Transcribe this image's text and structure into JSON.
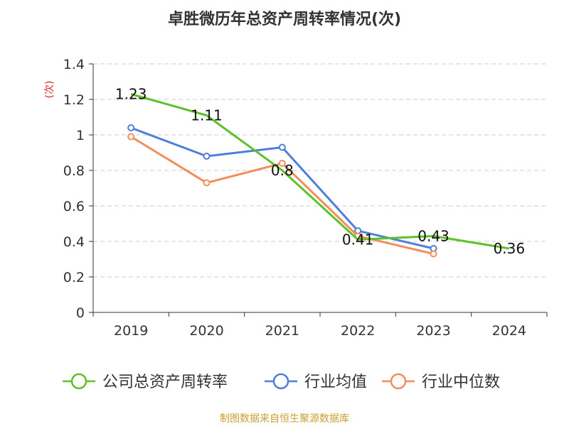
{
  "chart_data": {
    "type": "line",
    "title": "卓胜微历年总资产周转率情况(次)",
    "ylabel": "(次)",
    "xlabel": "",
    "categories": [
      "2019",
      "2020",
      "2021",
      "2022",
      "2023",
      "2024"
    ],
    "ylim": [
      0,
      1.4
    ],
    "yticks": [
      "0",
      "0.2",
      "0.4",
      "0.6",
      "0.8",
      "1",
      "1.2",
      "1.4"
    ],
    "ytick_values": [
      0,
      0.2,
      0.4,
      0.6,
      0.8,
      1.0,
      1.2,
      1.4
    ],
    "grid": true,
    "legend_position": "bottom",
    "series": [
      {
        "name": "公司总资产周转率",
        "color": "#5ec12a",
        "values": [
          1.23,
          1.11,
          0.8,
          0.41,
          0.43,
          0.36
        ],
        "data_labels": [
          "1.23",
          "1.11",
          "0.8",
          "0.41",
          "0.43",
          "0.36"
        ],
        "markers": false
      },
      {
        "name": "行业均值",
        "color": "#4f7fdb",
        "values": [
          1.04,
          0.88,
          0.93,
          0.46,
          0.36,
          null
        ],
        "markers": true
      },
      {
        "name": "行业中位数",
        "color": "#f28e5c",
        "values": [
          0.99,
          0.73,
          0.84,
          0.43,
          0.33,
          null
        ],
        "markers": true
      }
    ],
    "source": "制图数据来自恒生聚源数据库"
  }
}
